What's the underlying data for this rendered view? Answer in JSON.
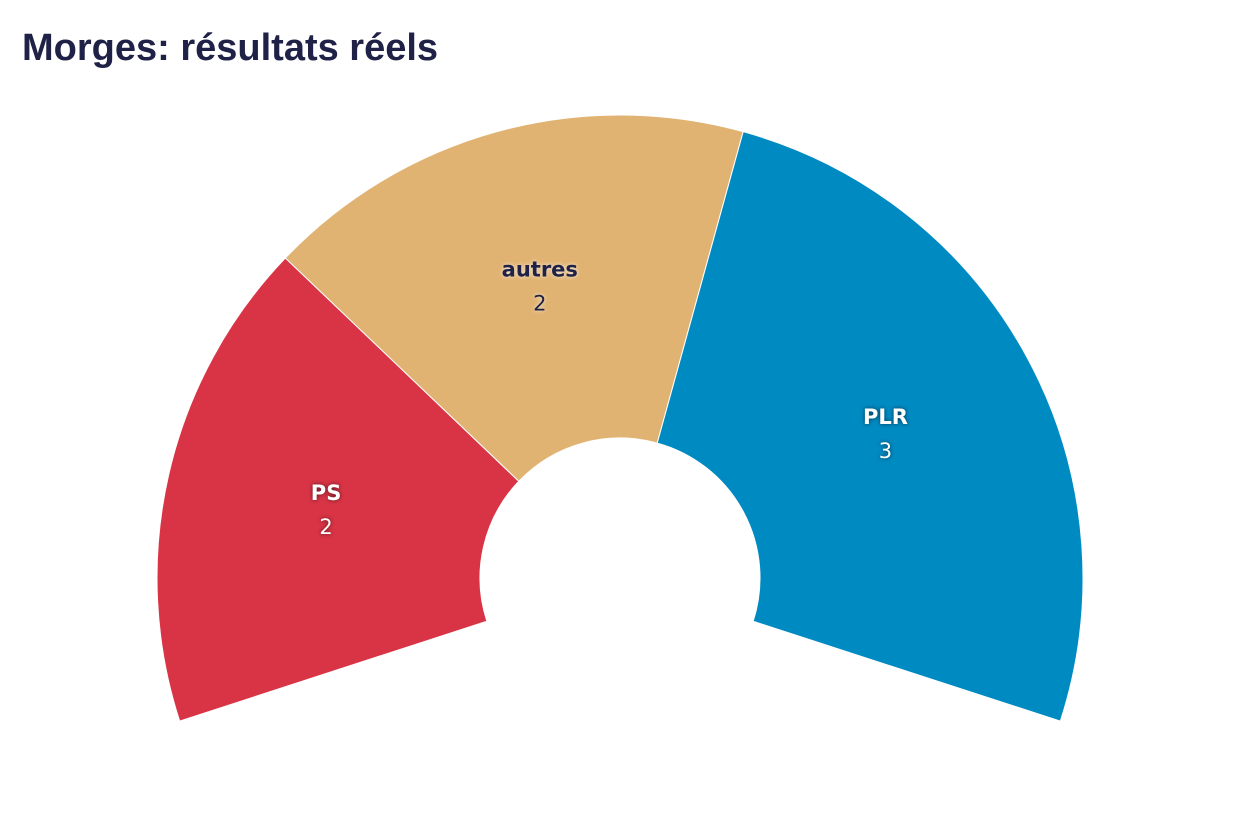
{
  "chart_data": {
    "type": "pie",
    "title": "Morges: résultats réels",
    "categories": [
      "PS",
      "autres",
      "PLR"
    ],
    "values": [
      2,
      2,
      3
    ],
    "colors": [
      "#d93445",
      "#e1b372",
      "#008ac2"
    ],
    "label_colors": [
      "#ffffff",
      "#1f2246",
      "#ffffff"
    ]
  }
}
